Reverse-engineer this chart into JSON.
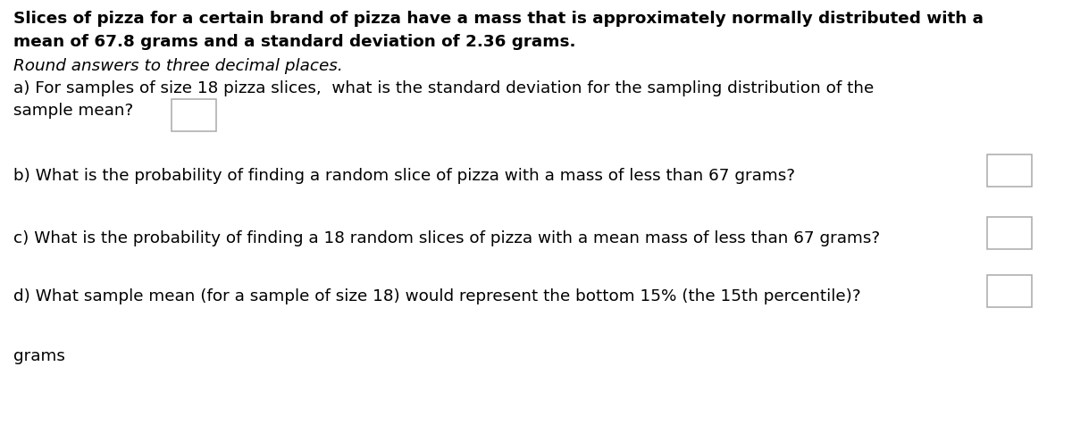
{
  "background_color": "#ffffff",
  "title_line1": "Slices of pizza for a certain brand of pizza have a mass that is approximately normally distributed with a",
  "title_line2": "mean of 67.8 grams and a standard deviation of 2.36 grams.",
  "subtitle": "Round answers to three decimal places.",
  "question_a_line1": "a) For samples of size 18 pizza slices,  what is the standard deviation for the sampling distribution of the",
  "question_a_line2": "sample mean?",
  "question_b": "b) What is the probability of finding a random slice of pizza with a mass of less than 67 grams?",
  "question_c": "c) What is the probability of finding a 18 random slices of pizza with a mean mass of less than 67 grams?",
  "question_d": "d) What sample mean (for a sample of size 18) would represent the bottom 15% (the 15th percentile)?",
  "footer": "grams",
  "title_fontsize": 13.2,
  "subtitle_fontsize": 13.2,
  "question_fontsize": 13.2,
  "box_edge_color": "#aaaaaa",
  "box_face_color": "#ffffff"
}
